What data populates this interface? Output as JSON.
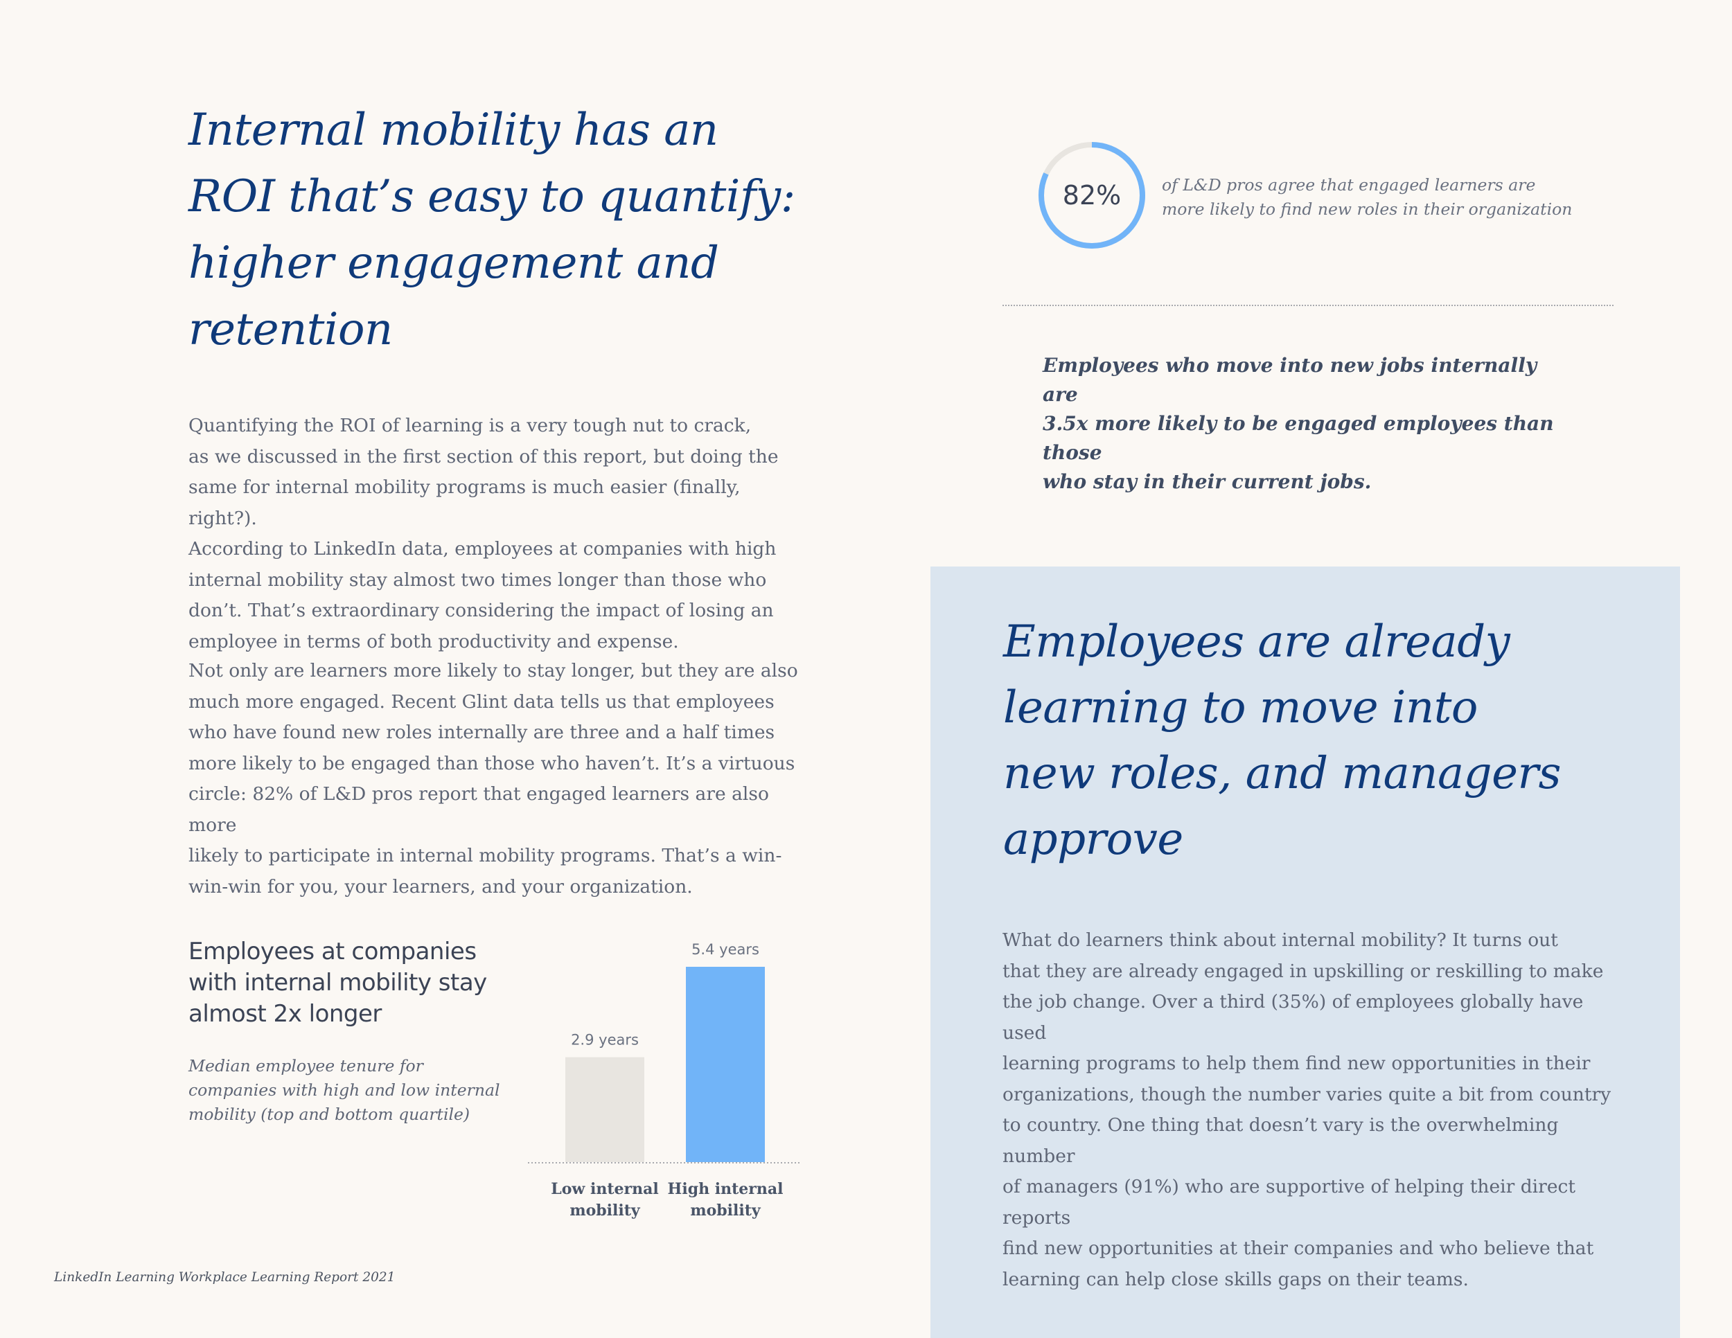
{
  "left": {
    "headline": "Internal mobility has an\nROI that’s easy to quantify:\nhigher engagement and\nretention",
    "paragraph1": "Quantifying the ROI of learning is a very tough nut to crack,\nas we discussed in the first section of this report, but doing the\nsame for internal mobility programs is much easier (finally, right?).\nAccording to LinkedIn data, employees at companies with high\ninternal mobility stay almost two times longer than those who\ndon’t. That’s extraordinary considering the impact of losing an\nemployee in terms of both productivity and expense.",
    "paragraph2": "Not only are learners more likely to stay longer, but they are also\nmuch more engaged. Recent Glint data tells us that employees\nwho have found new roles internally are three and a half times\nmore likely to be engaged than those who haven’t. It’s a virtuous\ncircle: 82% of L&D pros report that engaged learners are also more\nlikely to participate in internal mobility programs. That’s a win-\nwin-win for you, your learners, and your organization."
  },
  "chart_data": {
    "type": "bar",
    "title": "Employees at companies\nwith internal mobility stay\nalmost 2x longer",
    "subtitle": "Median employee tenure for\ncompanies with high and low internal\nmobility (top and bottom quartile)",
    "categories": [
      "Low internal\nmobility",
      "High internal\nmobility"
    ],
    "values": [
      2.9,
      5.4
    ],
    "data_labels": [
      "2.9 years",
      "5.4 years"
    ],
    "colors": [
      "#e8e5e0",
      "#71b4f8"
    ],
    "ylim": [
      0,
      5.4
    ],
    "grid": false,
    "xlabel": "",
    "ylabel": ""
  },
  "stat": {
    "value_label": "82%",
    "fraction": 0.82,
    "caption": "of L&D pros agree that engaged learners are\nmore likely to find new roles in their organization",
    "ring_color": "#71b4f8",
    "track_color": "#e8e5e0"
  },
  "callout": "Employees who move into new jobs internally are\n3.5x more likely to be engaged employees than those\nwho stay in their current jobs.",
  "panel": {
    "headline": "Employees are already\nlearning to move into\nnew roles, and managers\napprove",
    "text": "What do learners think about internal mobility? It turns out\nthat they are already engaged in upskilling or reskilling to make\nthe job change. Over a third (35%) of employees globally have used\nlearning programs to help them find new opportunities in their\norganizations, though the number varies quite a bit from country\nto country. One thing that doesn’t vary is the overwhelming number\nof managers (91%) who are supportive of helping their direct reports\nfind new opportunities at their companies and who believe that\nlearning can help close skills gaps on their teams.",
    "background": "#dbe5ef"
  },
  "footer": "LinkedIn Learning Workplace Learning Report 2021",
  "colors": {
    "headline": "#0f3a7a",
    "body": "#5e6575",
    "page_bg": "#fbf8f4"
  }
}
